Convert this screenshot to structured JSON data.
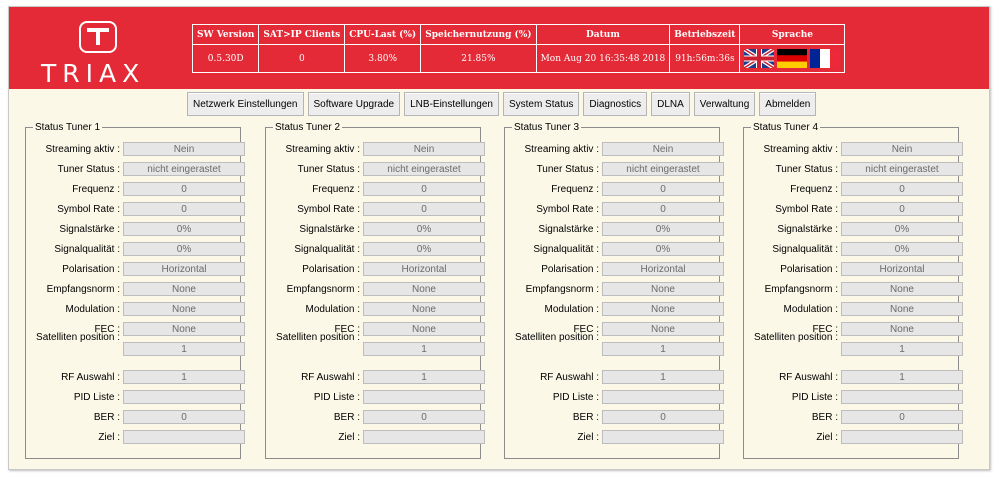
{
  "brand": {
    "logo_text": "TRIAX"
  },
  "header": {
    "columns": [
      "SW Version",
      "SAT>IP Clients",
      "CPU-Last (%)",
      "Speichernutzung (%)",
      "Datum",
      "Betriebszeit",
      "Sprache"
    ],
    "values": [
      "0.5.30D",
      "0",
      "3.80%",
      "21.85%",
      "Mon Aug 20 16:35:48 2018",
      "91h:56m:36s"
    ],
    "languages": [
      "english-flag",
      "german-flag",
      "french-flag"
    ]
  },
  "nav": [
    "Netzwerk Einstellungen",
    "Software Upgrade",
    "LNB-Einstellungen",
    "System Status",
    "Diagnostics",
    "DLNA",
    "Verwaltung",
    "Abmelden"
  ],
  "field_labels": [
    "Streaming aktiv :",
    "Tuner Status :",
    "Frequenz :",
    "Symbol Rate :",
    "Signalstärke :",
    "Signalqualität :",
    "Polarisation :",
    "Empfangsnorm :",
    "Modulation :",
    "FEC :",
    "Satelliten position :",
    "RF Auswahl :",
    "PID Liste :",
    "BER :",
    "Ziel :"
  ],
  "tuners": [
    {
      "title": "Status Tuner 1",
      "values": [
        "Nein",
        "nicht eingerastet",
        "0",
        "0",
        "0%",
        "0%",
        "Horizontal",
        "None",
        "None",
        "None",
        "1",
        "1",
        "",
        "0",
        ""
      ]
    },
    {
      "title": "Status Tuner 2",
      "values": [
        "Nein",
        "nicht eingerastet",
        "0",
        "0",
        "0%",
        "0%",
        "Horizontal",
        "None",
        "None",
        "None",
        "1",
        "1",
        "",
        "0",
        ""
      ]
    },
    {
      "title": "Status Tuner 3",
      "values": [
        "Nein",
        "nicht eingerastet",
        "0",
        "0",
        "0%",
        "0%",
        "Horizontal",
        "None",
        "None",
        "None",
        "1",
        "1",
        "",
        "0",
        ""
      ]
    },
    {
      "title": "Status Tuner 4",
      "values": [
        "Nein",
        "nicht eingerastet",
        "0",
        "0",
        "0%",
        "0%",
        "Horizontal",
        "None",
        "None",
        "None",
        "1",
        "1",
        "",
        "0",
        ""
      ]
    }
  ],
  "colors": {
    "brand_red": "#e32a36",
    "page_bg": "#fbf8e8",
    "field_bg": "#e6e6e6"
  }
}
